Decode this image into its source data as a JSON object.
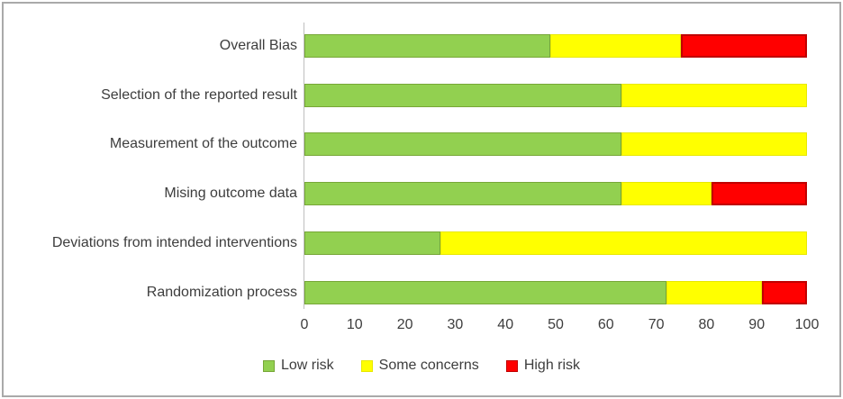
{
  "figure": {
    "frame_border_color": "#a9a9a9",
    "background_color": "#ffffff",
    "text_color": "#3d3d3d"
  },
  "chart_data": {
    "type": "bar",
    "orientation": "horizontal",
    "stacked": true,
    "title": "",
    "xlabel": "",
    "ylabel": "",
    "xlim": [
      0,
      100
    ],
    "x_ticks": [
      0,
      10,
      20,
      30,
      40,
      50,
      60,
      70,
      80,
      90,
      100
    ],
    "grid": false,
    "legend_position": "bottom",
    "axis_line_color": "#bfbfbf",
    "categories_top_to_bottom": [
      "Overall Bias",
      "Selection of the reported result",
      "Measurement of the outcome",
      "Mising outcome data",
      "Deviations from intended interventions",
      "Randomization process"
    ],
    "series": [
      {
        "name": "Low risk",
        "color": "#92d050",
        "border_color": "#77a737",
        "border_width": 1,
        "values": [
          49,
          63,
          63,
          63,
          27,
          72
        ]
      },
      {
        "name": "Some concerns",
        "color": "#ffff00",
        "border_color": "#e8e800",
        "border_width": 1,
        "values": [
          26,
          37,
          37,
          18,
          73,
          19
        ]
      },
      {
        "name": "High risk",
        "color": "#ff0000",
        "border_color": "#c00000",
        "border_width": 2,
        "values": [
          25,
          0,
          0,
          19,
          0,
          9
        ]
      }
    ]
  }
}
